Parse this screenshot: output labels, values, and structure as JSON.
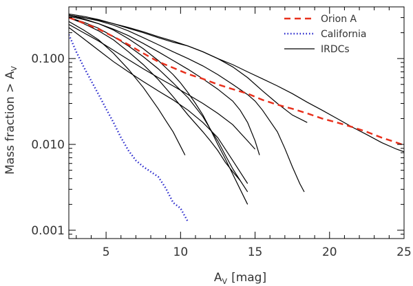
{
  "chart_data": {
    "type": "line",
    "title": "",
    "xlabel": "A",
    "xlabel_sub": "V",
    "xlabel_unit": "[mag]",
    "ylabel": "Mass fraction > A",
    "ylabel_sub": "V",
    "xlim": [
      2.5,
      25
    ],
    "ylim": [
      0.0008,
      0.4
    ],
    "yscale": "log",
    "x_ticks": [
      5,
      10,
      15,
      20,
      25
    ],
    "x_tick_labels": [
      "5",
      "10",
      "15",
      "20",
      "25"
    ],
    "y_ticks": [
      0.001,
      0.01,
      0.1
    ],
    "y_tick_labels": [
      "0.001",
      "0.010",
      "0.100"
    ],
    "legend_position": "top-right",
    "series": [
      {
        "name": "Orion A",
        "color": "#e8301c",
        "style": "dashed",
        "in_legend": true,
        "x": [
          2.5,
          3.5,
          4.5,
          5.5,
          6.5,
          7.5,
          8.5,
          9.5,
          10.5,
          11.5,
          12.5,
          13.5,
          14.5,
          15.5,
          16.5,
          17.5,
          18.5,
          19.5,
          20.5,
          21.5,
          22.5,
          23.5,
          24.5,
          25
        ],
        "y": [
          0.3,
          0.26,
          0.22,
          0.18,
          0.145,
          0.115,
          0.092,
          0.078,
          0.066,
          0.058,
          0.05,
          0.044,
          0.039,
          0.033,
          0.029,
          0.026,
          0.023,
          0.02,
          0.018,
          0.016,
          0.014,
          0.012,
          0.0105,
          0.0098
        ]
      },
      {
        "name": "California",
        "color": "#2626cc",
        "style": "dotted",
        "in_legend": true,
        "x": [
          2.5,
          3.0,
          3.5,
          4.0,
          4.5,
          5.0,
          5.5,
          6.0,
          6.5,
          7.0,
          7.5,
          8.0,
          8.5,
          9.0,
          9.5,
          10.0,
          10.5
        ],
        "y": [
          0.19,
          0.12,
          0.08,
          0.055,
          0.038,
          0.026,
          0.018,
          0.012,
          0.0085,
          0.0065,
          0.0055,
          0.0048,
          0.0042,
          0.0031,
          0.0021,
          0.0018,
          0.00125
        ]
      },
      {
        "name": "IRDCs",
        "color": "#000000",
        "style": "solid",
        "in_legend": true,
        "x": [
          2.5,
          3.5,
          4.5,
          5.5,
          6.5,
          7.5,
          8.5,
          9.5,
          10.5,
          11.5,
          12.5,
          13.5,
          14.5,
          15.5,
          16.5,
          17.5,
          18.5,
          19.5,
          20.5,
          21.5,
          22.5,
          23.5,
          24.5,
          25
        ],
        "y": [
          0.32,
          0.3,
          0.28,
          0.255,
          0.23,
          0.205,
          0.18,
          0.16,
          0.14,
          0.12,
          0.1,
          0.085,
          0.07,
          0.058,
          0.048,
          0.039,
          0.031,
          0.025,
          0.02,
          0.016,
          0.013,
          0.0105,
          0.0088,
          0.0082
        ]
      },
      {
        "name": "IRDC 2",
        "color": "#000000",
        "style": "solid",
        "in_legend": false,
        "x": [
          2.5,
          3.5,
          4.5,
          5.5,
          6.5,
          7.5,
          8.5,
          9.5,
          10.5,
          11.5,
          12.5,
          13.5,
          14.5,
          15.5,
          16.5,
          17.5,
          18.5
        ],
        "y": [
          0.33,
          0.31,
          0.285,
          0.255,
          0.225,
          0.2,
          0.175,
          0.155,
          0.14,
          0.12,
          0.1,
          0.08,
          0.06,
          0.042,
          0.03,
          0.022,
          0.018
        ]
      },
      {
        "name": "IRDC 3",
        "color": "#000000",
        "style": "solid",
        "in_legend": false,
        "x": [
          2.5,
          3.5,
          4.5,
          5.5,
          6.5,
          7.5,
          8.5,
          9.5,
          10.5,
          11.5,
          12.5,
          13.5,
          14.5,
          15.0,
          15.5,
          16.5,
          17.0,
          17.5,
          18.0,
          18.3
        ],
        "y": [
          0.32,
          0.3,
          0.275,
          0.245,
          0.21,
          0.175,
          0.145,
          0.12,
          0.1,
          0.082,
          0.065,
          0.05,
          0.038,
          0.032,
          0.025,
          0.014,
          0.009,
          0.0055,
          0.0035,
          0.0028
        ]
      },
      {
        "name": "IRDC 4",
        "color": "#000000",
        "style": "solid",
        "in_legend": false,
        "x": [
          2.5,
          3.5,
          4.5,
          5.5,
          6.5,
          7.5,
          8.5,
          9.5,
          10.5,
          11.5,
          12.5,
          13.5,
          14.0,
          14.5,
          15.0,
          15.3
        ],
        "y": [
          0.31,
          0.285,
          0.255,
          0.22,
          0.185,
          0.15,
          0.12,
          0.095,
          0.075,
          0.058,
          0.044,
          0.032,
          0.025,
          0.018,
          0.011,
          0.0075
        ]
      },
      {
        "name": "IRDC 5",
        "color": "#000000",
        "style": "solid",
        "in_legend": false,
        "x": [
          2.5,
          3.5,
          4.5,
          5.5,
          6.5,
          7.5,
          8.5,
          9.5,
          10.0,
          10.5,
          11.0,
          11.5,
          12.0,
          12.5,
          13.0,
          13.5,
          14.0,
          14.5
        ],
        "y": [
          0.32,
          0.29,
          0.255,
          0.215,
          0.17,
          0.13,
          0.095,
          0.065,
          0.052,
          0.04,
          0.03,
          0.022,
          0.015,
          0.011,
          0.0075,
          0.0052,
          0.0038,
          0.0028
        ]
      },
      {
        "name": "IRDC 6",
        "color": "#000000",
        "style": "solid",
        "in_legend": false,
        "x": [
          2.5,
          3.5,
          4.5,
          5.5,
          6.5,
          7.5,
          8.5,
          9.5,
          10.5,
          11.5,
          12.0,
          12.5,
          13.0,
          13.5,
          14.0,
          14.5
        ],
        "y": [
          0.3,
          0.265,
          0.225,
          0.18,
          0.14,
          0.105,
          0.076,
          0.052,
          0.035,
          0.021,
          0.015,
          0.01,
          0.0068,
          0.0045,
          0.003,
          0.002
        ]
      },
      {
        "name": "IRDC 7",
        "color": "#000000",
        "style": "solid",
        "in_legend": false,
        "x": [
          2.5,
          3.5,
          4.5,
          5.5,
          6.5,
          7.5,
          8.5,
          9.5,
          10.5,
          11.5,
          12.0,
          12.5,
          13.0,
          13.5,
          14.0
        ],
        "y": [
          0.3,
          0.255,
          0.21,
          0.165,
          0.12,
          0.085,
          0.057,
          0.036,
          0.022,
          0.014,
          0.011,
          0.0085,
          0.0062,
          0.0048,
          0.0038
        ]
      },
      {
        "name": "IRDC 8",
        "color": "#000000",
        "style": "solid",
        "in_legend": false,
        "x": [
          2.5,
          3.5,
          4.5,
          5.5,
          6.5,
          7.5,
          8.5,
          9.0,
          9.5,
          10.0,
          10.3
        ],
        "y": [
          0.27,
          0.215,
          0.165,
          0.115,
          0.075,
          0.046,
          0.026,
          0.019,
          0.014,
          0.0095,
          0.0075
        ]
      },
      {
        "name": "IRDC 9",
        "color": "#000000",
        "style": "solid",
        "in_legend": false,
        "x": [
          2.5,
          3.5,
          4.5,
          5.5,
          6.5,
          7.5,
          8.5,
          9.5,
          10.5,
          11.5,
          12.5,
          13.5,
          14.5
        ],
        "y": [
          0.23,
          0.17,
          0.125,
          0.092,
          0.07,
          0.054,
          0.042,
          0.033,
          0.025,
          0.018,
          0.012,
          0.0065,
          0.0035
        ]
      },
      {
        "name": "IRDC 10",
        "color": "#000000",
        "style": "solid",
        "in_legend": false,
        "x": [
          2.5,
          3.5,
          4.5,
          5.5,
          6.5,
          7.5,
          8.5,
          9.5,
          10.5,
          11.5,
          12.5,
          13.5,
          14.5,
          15.0
        ],
        "y": [
          0.25,
          0.2,
          0.16,
          0.125,
          0.097,
          0.076,
          0.06,
          0.048,
          0.038,
          0.03,
          0.023,
          0.017,
          0.011,
          0.0088
        ]
      }
    ]
  }
}
